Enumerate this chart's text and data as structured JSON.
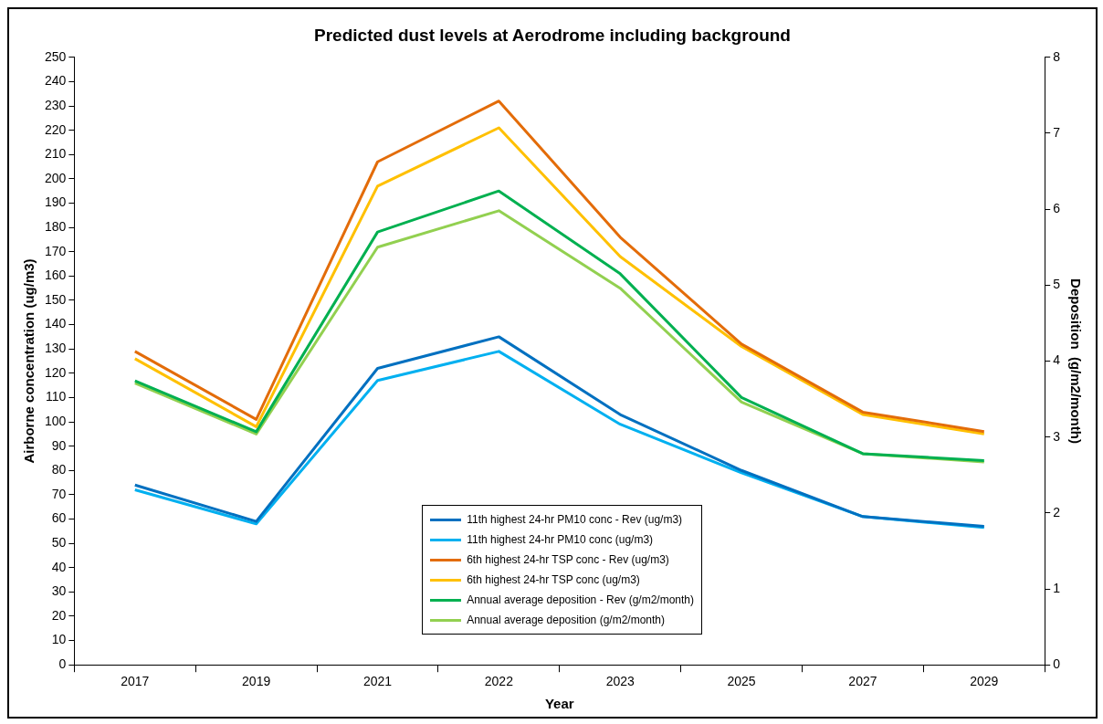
{
  "chart_data": {
    "type": "line",
    "title": "Predicted dust levels at Aerodrome including background",
    "xlabel": "Year",
    "ylabel": "Airborne concentration (ug/m3)",
    "y2label": "Deposition  (g/m2/month)",
    "categories": [
      "2017",
      "2019",
      "2021",
      "2022",
      "2023",
      "2025",
      "2027",
      "2029"
    ],
    "series": [
      {
        "name": "11th highest 24-hr PM10 conc - Rev (ug/m3)",
        "color": "#0070c0",
        "values": [
          74,
          59,
          122,
          135,
          103,
          80,
          61,
          57
        ]
      },
      {
        "name": "11th highest 24-hr PM10 conc (ug/m3)",
        "color": "#00b0f0",
        "values": [
          72,
          58,
          117,
          129,
          99,
          79,
          61,
          56.5
        ]
      },
      {
        "name": "6th highest 24-hr TSP conc - Rev (ug/m3)",
        "color": "#e36c09",
        "values": [
          129,
          101,
          207,
          232,
          176,
          132,
          104,
          96
        ]
      },
      {
        "name": "6th highest 24-hr TSP conc (ug/m3)",
        "color": "#ffc000",
        "values": [
          126,
          98,
          197,
          221,
          168,
          131,
          103,
          95
        ]
      },
      {
        "name": "Annual average deposition - Rev (g/m2/month)",
        "color": "#00b050",
        "axis": "y2",
        "values": [
          3.74,
          3.07,
          5.7,
          6.24,
          5.15,
          3.52,
          2.78,
          2.69
        ]
      },
      {
        "name": "Annual average deposition (g/m2/month)",
        "color": "#92d050",
        "axis": "y2",
        "values": [
          3.71,
          3.04,
          5.5,
          5.98,
          4.96,
          3.46,
          2.78,
          2.67
        ]
      }
    ],
    "ylim": [
      0,
      250
    ],
    "yticks": [
      0,
      10,
      20,
      30,
      40,
      50,
      60,
      70,
      80,
      90,
      100,
      110,
      120,
      130,
      140,
      150,
      160,
      170,
      180,
      190,
      200,
      210,
      220,
      230,
      240,
      250
    ],
    "y2lim": [
      0,
      8
    ],
    "y2ticks": [
      0,
      1,
      2,
      3,
      4,
      5,
      6,
      7,
      8
    ],
    "grid": false,
    "legend": "bottom",
    "marker": "none",
    "line_style": "solid"
  }
}
